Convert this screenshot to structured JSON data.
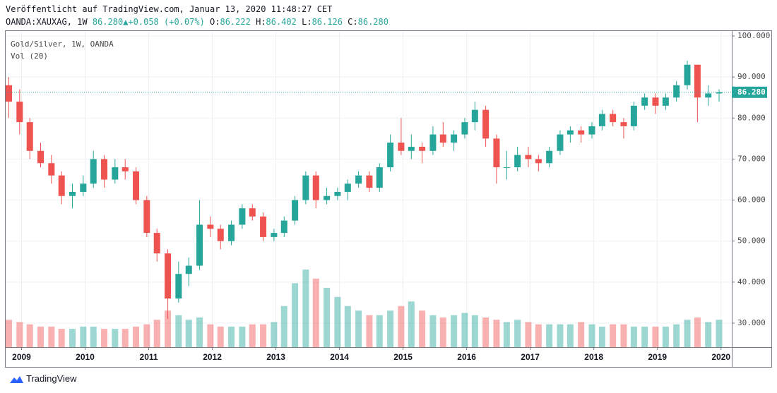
{
  "header": {
    "published": "Veröffentlicht auf TradingView.com, Januar 13, 2020 11:48:27 CET",
    "symbol": "OANDA:XAUXAG, 1W",
    "price": "86.280",
    "arrow": "▲",
    "change": "+0.058 (+0.07%)",
    "ohlc": [
      {
        "label": "O:",
        "value": "86.222"
      },
      {
        "label": "H:",
        "value": "86.402"
      },
      {
        "label": "L:",
        "value": "86.126"
      },
      {
        "label": "C:",
        "value": "86.280"
      }
    ]
  },
  "chart_data": {
    "type": "candlestick",
    "title": "Gold/Silver, 1W, OANDA",
    "volume_label": "Vol (20)",
    "x": [
      2008.8,
      2008.97,
      2009.13,
      2009.3,
      2009.47,
      2009.63,
      2009.8,
      2009.97,
      2010.13,
      2010.3,
      2010.47,
      2010.63,
      2010.8,
      2010.97,
      2011.13,
      2011.3,
      2011.47,
      2011.63,
      2011.8,
      2011.97,
      2012.13,
      2012.3,
      2012.47,
      2012.63,
      2012.8,
      2012.97,
      2013.13,
      2013.3,
      2013.47,
      2013.63,
      2013.8,
      2013.97,
      2014.13,
      2014.3,
      2014.47,
      2014.63,
      2014.8,
      2014.97,
      2015.13,
      2015.3,
      2015.47,
      2015.63,
      2015.8,
      2015.97,
      2016.13,
      2016.3,
      2016.47,
      2016.63,
      2016.8,
      2016.97,
      2017.13,
      2017.3,
      2017.47,
      2017.63,
      2017.8,
      2017.97,
      2018.13,
      2018.3,
      2018.47,
      2018.63,
      2018.8,
      2018.97,
      2019.13,
      2019.3,
      2019.47,
      2019.63,
      2019.8,
      2019.97
    ],
    "open": [
      88,
      84,
      79,
      72,
      69,
      66,
      61,
      62,
      64,
      70,
      65,
      68,
      67,
      60,
      52,
      47,
      36,
      42,
      44,
      54,
      53,
      50,
      54,
      58,
      56,
      51,
      52,
      55,
      60,
      66,
      60,
      61,
      62,
      64,
      66,
      63,
      68,
      74,
      72,
      73,
      72,
      76,
      74,
      76,
      79,
      82,
      75,
      68,
      68,
      71,
      70,
      69,
      72,
      76,
      77,
      76,
      78,
      81,
      79,
      78,
      83,
      85,
      83,
      85,
      88,
      93,
      85,
      86
    ],
    "high": [
      90,
      87,
      80,
      74,
      71,
      67,
      64,
      66,
      72,
      71,
      70,
      70,
      68,
      61,
      53,
      48,
      45,
      46,
      60,
      56,
      54,
      55,
      59,
      59,
      57,
      53,
      56,
      61,
      67,
      67,
      63,
      63,
      65,
      67,
      67,
      69,
      76,
      80,
      76,
      74,
      78,
      79,
      77,
      80,
      84,
      83,
      76,
      72,
      73,
      73,
      71,
      73,
      77,
      78,
      78,
      79,
      82,
      82,
      80,
      84,
      86,
      86,
      86,
      89,
      94,
      93,
      88,
      87
    ],
    "low": [
      80,
      76,
      70,
      68,
      64,
      59,
      58,
      61,
      63,
      63,
      64,
      65,
      59,
      51,
      45,
      31,
      35,
      39,
      43,
      51,
      48,
      49,
      53,
      55,
      50,
      50,
      51,
      54,
      59,
      58,
      59,
      60,
      60,
      63,
      62,
      62,
      67,
      71,
      70,
      69,
      71,
      73,
      72,
      75,
      77,
      73,
      64,
      65,
      67,
      68,
      67,
      68,
      71,
      74,
      74,
      75,
      77,
      78,
      75,
      77,
      82,
      81,
      82,
      84,
      87,
      79,
      83,
      84
    ],
    "close": [
      84,
      79,
      72,
      69,
      66,
      61,
      62,
      64,
      70,
      65,
      68,
      67,
      60,
      52,
      47,
      36,
      42,
      44,
      54,
      53,
      50,
      54,
      58,
      56,
      51,
      52,
      55,
      60,
      66,
      60,
      61,
      62,
      64,
      66,
      63,
      68,
      74,
      72,
      73,
      72,
      76,
      74,
      76,
      79,
      82,
      75,
      68,
      68,
      71,
      70,
      69,
      72,
      76,
      77,
      76,
      78,
      81,
      79,
      78,
      83,
      85,
      83,
      85,
      88,
      93,
      85,
      86,
      86.28
    ],
    "volume": [
      12,
      11,
      10,
      9,
      9,
      8,
      8,
      9,
      9,
      8,
      8,
      8,
      9,
      10,
      12,
      16,
      14,
      12,
      13,
      10,
      9,
      9,
      9,
      10,
      10,
      11,
      18,
      28,
      34,
      30,
      26,
      22,
      18,
      16,
      14,
      14,
      16,
      18,
      20,
      16,
      14,
      13,
      14,
      15,
      14,
      13,
      12,
      11,
      12,
      11,
      10,
      10,
      10,
      10,
      11,
      10,
      9,
      10,
      10,
      9,
      9,
      9,
      9,
      10,
      12,
      13,
      11,
      12
    ],
    "up_color": "#26a69a",
    "down_color": "#ef5350",
    "xlim": [
      2008.75,
      2020.17
    ],
    "xticks": [
      2009,
      2010,
      2011,
      2012,
      2013,
      2014,
      2015,
      2016,
      2017,
      2018,
      2019,
      2020
    ],
    "ylim": [
      24.15,
      101.38
    ],
    "yticks": [
      {
        "value": 30,
        "label": "30.000"
      },
      {
        "value": 40,
        "label": "40.000"
      },
      {
        "value": 50,
        "label": "50.000"
      },
      {
        "value": 60,
        "label": "60.000"
      },
      {
        "value": 70,
        "label": "70.000"
      },
      {
        "value": 80,
        "label": "80.000"
      },
      {
        "value": 90,
        "label": "90.000"
      },
      {
        "value": 100,
        "label": "100.000"
      }
    ],
    "grid": true,
    "last_price": {
      "value": 86.28,
      "label": "86.280"
    }
  },
  "footer": {
    "brand": "TradingView"
  }
}
